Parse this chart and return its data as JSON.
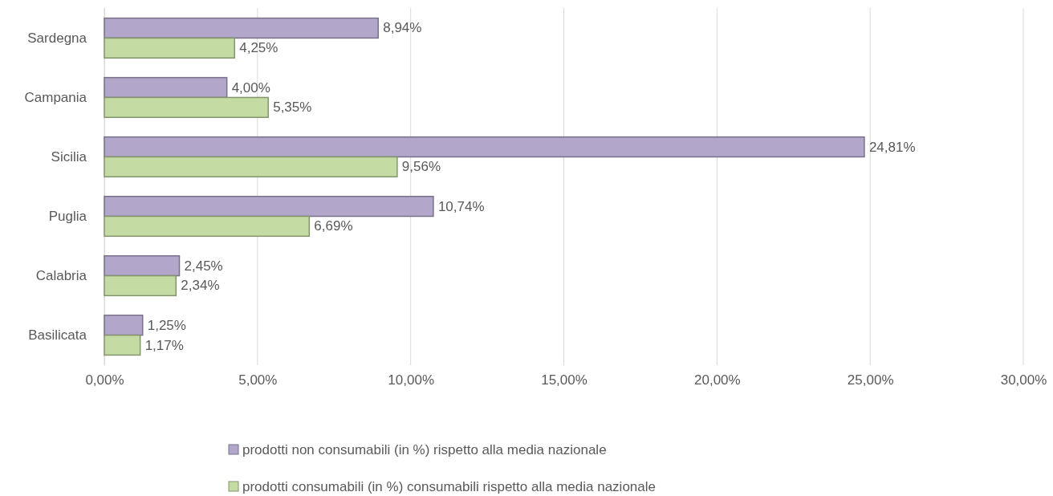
{
  "chart_data": {
    "type": "bar",
    "orientation": "horizontal",
    "categories": [
      "Sardegna",
      "Campania",
      "Sicilia",
      "Puglia",
      "Calabria",
      "Basilicata"
    ],
    "series": [
      {
        "name": "prodotti non consumabili  (in %) rispetto alla media nazionale",
        "color": "#b3a6cb",
        "values": [
          8.94,
          4.0,
          24.81,
          10.74,
          2.45,
          1.25
        ],
        "value_labels": [
          "8,94%",
          "4,00%",
          "24,81%",
          "10,74%",
          "2,45%",
          "1,25%"
        ]
      },
      {
        "name": "prodotti consumabili  (in %) consumabili rispetto alla media nazionale",
        "color": "#c4dca3",
        "values": [
          4.25,
          5.35,
          9.56,
          6.69,
          2.34,
          1.17
        ],
        "value_labels": [
          "4,25%",
          "5,35%",
          "9,56%",
          "6,69%",
          "2,34%",
          "1,17%"
        ]
      }
    ],
    "xlim": [
      0,
      30
    ],
    "xticks": [
      {
        "value": 0,
        "label": "0,00%"
      },
      {
        "value": 5,
        "label": "5,00%"
      },
      {
        "value": 10,
        "label": "10,00%"
      },
      {
        "value": 15,
        "label": "15,00%"
      },
      {
        "value": 20,
        "label": "20,00%"
      },
      {
        "value": 25,
        "label": "25,00%"
      },
      {
        "value": 30,
        "label": "30,00%"
      }
    ],
    "grid": "x",
    "legend": "bottom"
  }
}
